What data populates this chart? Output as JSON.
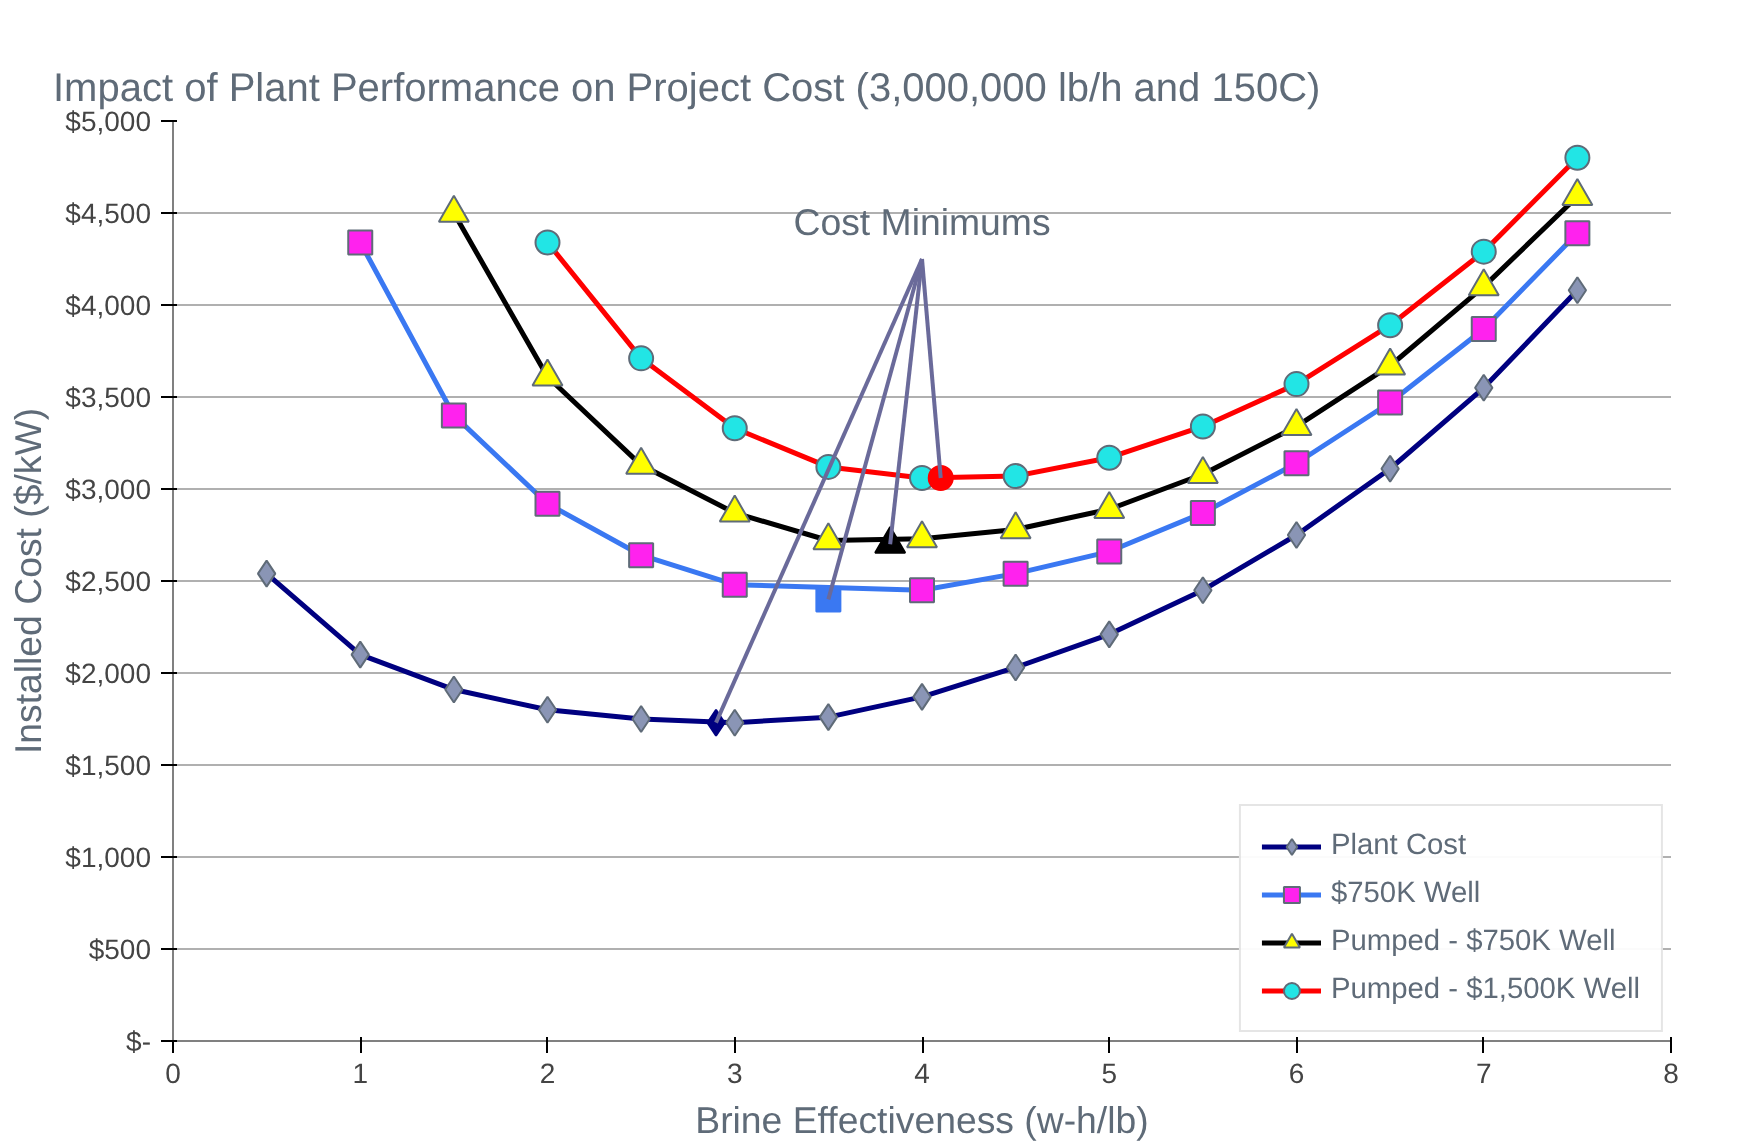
{
  "chart_data": {
    "type": "line",
    "title": "Impact of Plant Performance on Project Cost (3,000,000 lb/h and 150C)",
    "xlabel": "Brine Effectiveness (w-h/lb)",
    "ylabel": "Installed Cost ($/kW)",
    "xlim": [
      0,
      8
    ],
    "xticks": [
      0,
      1,
      2,
      3,
      4,
      5,
      6,
      7,
      8
    ],
    "ylim": [
      0,
      5000
    ],
    "yticks": [
      {
        "value": 0,
        "label": "$-"
      },
      {
        "value": 500,
        "label": "$500"
      },
      {
        "value": 1000,
        "label": "$1,000"
      },
      {
        "value": 1500,
        "label": "$1,500"
      },
      {
        "value": 2000,
        "label": "$2,000"
      },
      {
        "value": 2500,
        "label": "$2,500"
      },
      {
        "value": 3000,
        "label": "$3,000"
      },
      {
        "value": 3500,
        "label": "$3,500"
      },
      {
        "value": 4000,
        "label": "$4,000"
      },
      {
        "value": 4500,
        "label": "$4,500"
      },
      {
        "value": 5000,
        "label": "$5,000"
      }
    ],
    "grid": "y",
    "legend": "bottom right",
    "series": [
      {
        "name": "Plant Cost",
        "color": "#000080",
        "marker": "diamond",
        "x": [
          0.5,
          1,
          1.5,
          2,
          2.5,
          3,
          3.5,
          4,
          4.5,
          5,
          5.5,
          6,
          6.5,
          7,
          7.5
        ],
        "values": [
          2540,
          2100,
          1910,
          1800,
          1750,
          1730,
          1760,
          1870,
          2030,
          2210,
          2450,
          2750,
          3110,
          3550,
          4080
        ],
        "colors": [
          "#8a95b5",
          "#8a95b5",
          "#8a95b5",
          "#8a95b5",
          "#8a95b5",
          "#8a95b5",
          "#8a95b5",
          "#8a95b5",
          "#8a95b5",
          "#8a95b5",
          "#8a95b5",
          "#8a95b5",
          "#8a95b5",
          "#8a95b5",
          "#8a95b5"
        ]
      },
      {
        "name": "$750K Well",
        "color": "#3a78f2",
        "marker": "square",
        "x": [
          1,
          1.5,
          2,
          2.5,
          3,
          3.5,
          4,
          4.5,
          5,
          5.5,
          6,
          6.5,
          7,
          7.5
        ],
        "values": [
          4340,
          3400,
          2920,
          2640,
          2480,
          null,
          2450,
          2540,
          2660,
          2870,
          3140,
          3470,
          3870,
          4390
        ],
        "colors": [
          "#ff22ee",
          "#ff22ee",
          "#ff22ee",
          "#ff22ee",
          "#ff22ee",
          "#ff22ee",
          "#ff22ee",
          "#ff22ee",
          "#ff22ee",
          "#ff22ee",
          "#ff22ee",
          "#ff22ee",
          "#ff22ee",
          "#ff22ee"
        ]
      },
      {
        "name": "Pumped - $750K Well",
        "color": "#000000",
        "marker": "triangle",
        "x": [
          1.5,
          2,
          2.5,
          3,
          3.5,
          4,
          4.5,
          5,
          5.5,
          6,
          6.5,
          7,
          7.5
        ],
        "values": [
          4500,
          3610,
          3130,
          2870,
          2720,
          2730,
          2780,
          2890,
          3080,
          3340,
          3670,
          4100,
          4590
        ],
        "colors": [
          "#ffff00",
          "#ffff00",
          "#ffff00",
          "#ffff00",
          "#ffff00",
          "#ffff00",
          "#ffff00",
          "#ffff00",
          "#ffff00",
          "#ffff00",
          "#ffff00",
          "#ffff00",
          "#ffff00"
        ]
      },
      {
        "name": "Pumped - $1,500K Well",
        "color": "#ff0000",
        "marker": "circle",
        "x": [
          2,
          2.5,
          3,
          3.5,
          4,
          4.5,
          5,
          5.5,
          6,
          6.5,
          7,
          7.5
        ],
        "values": [
          4340,
          3710,
          3330,
          3120,
          3060,
          3070,
          3170,
          3340,
          3570,
          3890,
          4290,
          4800
        ],
        "colors": [
          "#22e5e5",
          "#22e5e5",
          "#22e5e5",
          "#22e5e5",
          "#22e5e5",
          "#22e5e5",
          "#22e5e5",
          "#22e5e5",
          "#22e5e5",
          "#22e5e5",
          "#22e5e5",
          "#22e5e5"
        ]
      },
      {
        "type": "scatter",
        "color": "#000080",
        "marker": "diamond",
        "x": [
          2.9
        ],
        "values": [
          1730
        ]
      },
      {
        "type": "scatter",
        "color": "#3a78f2",
        "marker": "square",
        "x": [
          3.5
        ],
        "values": [
          2400
        ]
      },
      {
        "type": "scatter",
        "color": "#000000",
        "marker": "triangle",
        "x": [
          3.83
        ],
        "values": [
          2700
        ]
      },
      {
        "type": "scatter",
        "color": "#ff0000",
        "marker": "circle",
        "x": [
          4.1
        ],
        "values": [
          3060
        ]
      }
    ],
    "annotations": [
      {
        "text": "Cost Minimums",
        "x": 2.9,
        "y": 1730
      }
    ]
  }
}
